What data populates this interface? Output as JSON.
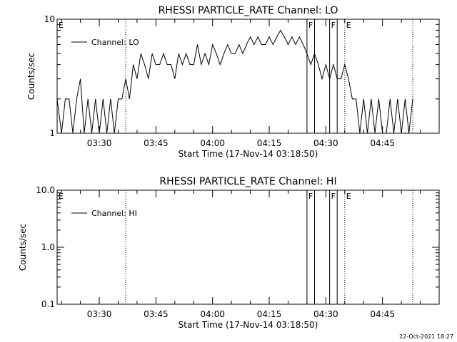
{
  "footer": {
    "timestamp": "22-Oct-2021 18:27"
  },
  "chart_data": [
    {
      "type": "line",
      "title": "RHESSI PARTICLE_RATE Channel: LO",
      "xlabel": "Start Time (17-Nov-14 03:18:50)",
      "ylabel": "Counts/sec",
      "yscale": "log",
      "xlim": [
        "03:18:50",
        "05:00:00"
      ],
      "ylim": [
        1,
        10
      ],
      "x_ticks": [
        "03:30",
        "03:45",
        "04:00",
        "04:15",
        "04:30",
        "04:45"
      ],
      "y_ticks": [
        "1",
        "10"
      ],
      "legend": {
        "entries": [
          "Channel: LO"
        ],
        "placement": "top-left"
      },
      "grid": false,
      "series": [
        {
          "name": "Channel: LO",
          "x": [
            "03:18:50",
            "03:20:00",
            "03:21:00",
            "03:22:00",
            "03:23:00",
            "03:24:00",
            "03:25:00",
            "03:26:00",
            "03:27:00",
            "03:28:00",
            "03:29:00",
            "03:30:00",
            "03:31:00",
            "03:32:00",
            "03:33:00",
            "03:34:00",
            "03:35:00",
            "03:36:00",
            "03:37:00",
            "03:38:00",
            "03:39:00",
            "03:40:00",
            "03:41:00",
            "03:42:00",
            "03:43:00",
            "03:44:00",
            "03:45:00",
            "03:46:00",
            "03:47:00",
            "03:48:00",
            "03:49:00",
            "03:50:00",
            "03:51:00",
            "03:52:00",
            "03:53:00",
            "03:54:00",
            "03:55:00",
            "03:56:00",
            "03:57:00",
            "03:58:00",
            "03:59:00",
            "04:00:00",
            "04:01:00",
            "04:02:00",
            "04:03:00",
            "04:04:00",
            "04:05:00",
            "04:06:00",
            "04:07:00",
            "04:08:00",
            "04:09:00",
            "04:10:00",
            "04:11:00",
            "04:12:00",
            "04:13:00",
            "04:14:00",
            "04:15:00",
            "04:16:00",
            "04:17:00",
            "04:18:00",
            "04:19:00",
            "04:20:00",
            "04:21:00",
            "04:22:00",
            "04:23:00",
            "04:24:00",
            "04:25:00",
            "04:26:00",
            "04:27:00",
            "04:28:00",
            "04:29:00",
            "04:30:00",
            "04:31:00",
            "04:32:00",
            "04:33:00",
            "04:34:00",
            "04:35:00",
            "04:36:00",
            "04:37:00",
            "04:38:00",
            "04:39:00",
            "04:40:00",
            "04:41:00",
            "04:42:00",
            "04:43:00",
            "04:44:00",
            "04:45:00",
            "04:46:00",
            "04:47:00",
            "04:48:00",
            "04:49:00",
            "04:50:00",
            "04:51:00",
            "04:52:00",
            "04:53:00"
          ],
          "y": [
            2,
            1,
            2,
            2,
            1,
            2,
            3,
            1,
            2,
            1,
            2,
            1,
            2,
            1,
            2,
            1,
            2,
            2,
            3,
            2,
            4,
            3,
            5,
            4,
            3,
            5,
            4,
            4,
            5,
            4,
            4,
            3,
            5,
            4,
            5,
            4,
            4,
            6,
            4,
            5,
            4,
            6,
            5,
            4,
            5,
            6,
            5,
            5,
            6,
            5,
            6,
            7,
            6,
            7,
            6,
            6,
            7,
            6,
            7,
            8,
            7,
            6,
            7,
            6,
            7,
            6,
            5,
            4,
            5,
            4,
            3,
            4,
            3,
            4,
            3,
            3,
            4,
            3,
            2,
            2,
            1,
            2,
            1,
            2,
            1,
            2,
            1,
            1,
            2,
            1,
            2,
            1,
            2,
            1,
            2
          ]
        }
      ],
      "annotations": [
        {
          "label": "E",
          "time": "03:18:50",
          "style": "dotted"
        },
        {
          "label": "",
          "time": "03:37:00",
          "style": "dotted"
        },
        {
          "label": "F",
          "time": "04:25:00",
          "style": "solid"
        },
        {
          "label": "",
          "time": "04:27:00",
          "style": "solid"
        },
        {
          "label": "F",
          "time": "04:31:00",
          "style": "solid"
        },
        {
          "label": "",
          "time": "04:33:00",
          "style": "solid"
        },
        {
          "label": "E",
          "time": "04:35:00",
          "style": "dotted"
        },
        {
          "label": "",
          "time": "04:53:00",
          "style": "dotted"
        }
      ]
    },
    {
      "type": "line",
      "title": "RHESSI PARTICLE_RATE Channel: HI",
      "xlabel": "Start Time (17-Nov-14 03:18:50)",
      "ylabel": "Counts/sec",
      "yscale": "log",
      "xlim": [
        "03:18:50",
        "05:00:00"
      ],
      "ylim": [
        0.1,
        10
      ],
      "x_ticks": [
        "03:30",
        "03:45",
        "04:00",
        "04:15",
        "04:30",
        "04:45"
      ],
      "y_ticks": [
        "0.1",
        "1.0",
        "10.0"
      ],
      "legend": {
        "entries": [
          "Channel: HI"
        ],
        "placement": "top-left"
      },
      "grid": false,
      "series": [
        {
          "name": "Channel: HI",
          "x": [],
          "y": []
        }
      ],
      "annotations": [
        {
          "label": "E",
          "time": "03:18:50",
          "style": "dotted"
        },
        {
          "label": "",
          "time": "03:37:00",
          "style": "dotted"
        },
        {
          "label": "F",
          "time": "04:25:00",
          "style": "solid"
        },
        {
          "label": "",
          "time": "04:27:00",
          "style": "solid"
        },
        {
          "label": "F",
          "time": "04:31:00",
          "style": "solid"
        },
        {
          "label": "",
          "time": "04:33:00",
          "style": "solid"
        },
        {
          "label": "E",
          "time": "04:35:00",
          "style": "dotted"
        },
        {
          "label": "",
          "time": "04:53:00",
          "style": "dotted"
        }
      ]
    }
  ]
}
